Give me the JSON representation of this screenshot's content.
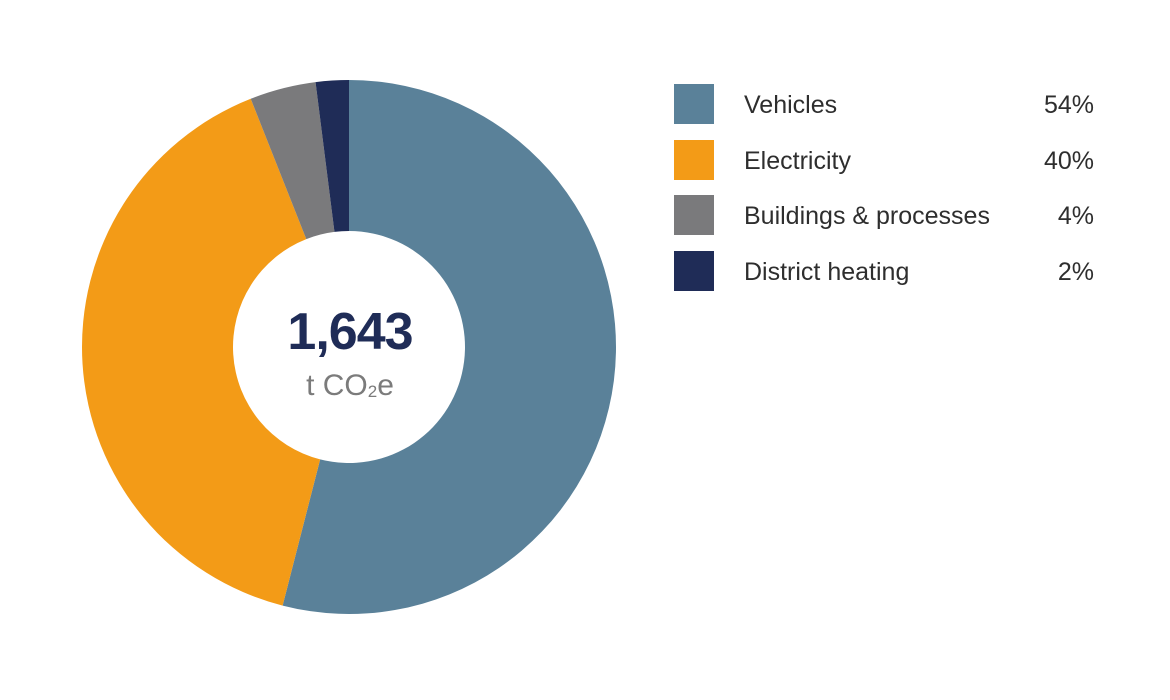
{
  "chart_data": {
    "type": "pie",
    "title": "",
    "center": {
      "total": "1,643",
      "unit_main": "t CO",
      "unit_sub": "2",
      "unit_end": "e"
    },
    "slices": [
      {
        "label": "Vehicles",
        "value": 54,
        "display": "54%",
        "color": "#5a8199"
      },
      {
        "label": "Electricity",
        "value": 40,
        "display": "40%",
        "color": "#f39b17"
      },
      {
        "label": "Buildings & processes",
        "value": 4,
        "display": "4%",
        "color": "#7a7a7c"
      },
      {
        "label": "District heating",
        "value": 2,
        "display": "2%",
        "color": "#1f2c57"
      }
    ],
    "legend_position": "right"
  }
}
